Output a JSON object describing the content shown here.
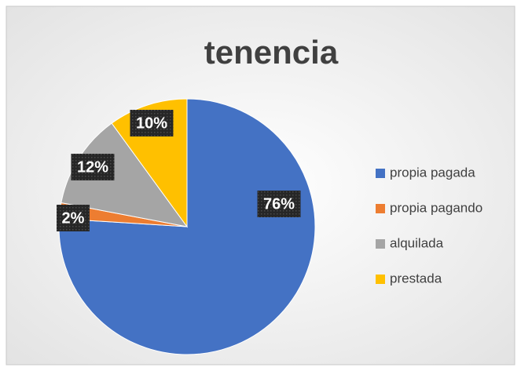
{
  "chart_data": {
    "type": "pie",
    "title": "tenencia",
    "categories": [
      "propia pagada",
      "propia pagando",
      "alquilada",
      "prestada"
    ],
    "values": [
      76,
      2,
      12,
      10
    ],
    "value_labels": [
      "76%",
      "2%",
      "12%",
      "10%"
    ],
    "colors": [
      "#4472c4",
      "#ed7d31",
      "#a5a5a5",
      "#ffc000"
    ],
    "legend": "right"
  }
}
